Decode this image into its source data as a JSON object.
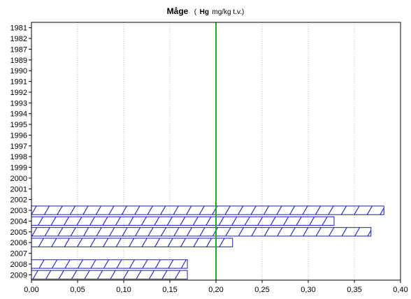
{
  "chart_data": {
    "type": "bar",
    "orientation": "horizontal",
    "title": {
      "main": "Måge",
      "paren_open": "(",
      "bold_part": "Hg",
      "rest": " mg/kg t.v.)"
    },
    "categories": [
      "1981",
      "1982",
      "1987",
      "1989",
      "1990",
      "1991",
      "1992",
      "1993",
      "1994",
      "1995",
      "1996",
      "1997",
      "1998",
      "1999",
      "2000",
      "2001",
      "2002",
      "2003",
      "2004",
      "2005",
      "2006",
      "2007",
      "2008",
      "2009"
    ],
    "values": [
      null,
      null,
      null,
      null,
      null,
      null,
      null,
      null,
      null,
      null,
      null,
      null,
      null,
      null,
      null,
      null,
      null,
      0.382,
      0.328,
      0.368,
      0.218,
      null,
      0.169,
      0.169
    ],
    "x_ticks": [
      "0,00",
      "0,05",
      "0,10",
      "0,15",
      "0,20",
      "0,25",
      "0,30",
      "0,35",
      "0,40"
    ],
    "x_tick_values": [
      0,
      0.05,
      0.1,
      0.15,
      0.2,
      0.25,
      0.3,
      0.35,
      0.4
    ],
    "xlim": [
      0,
      0.4
    ],
    "reference_line": {
      "value": 0.2,
      "color": "#22aa22"
    },
    "bar_color": "#1a1acc",
    "bar_pattern": "diagonal-hatch",
    "grid": "vertical-dotted"
  }
}
